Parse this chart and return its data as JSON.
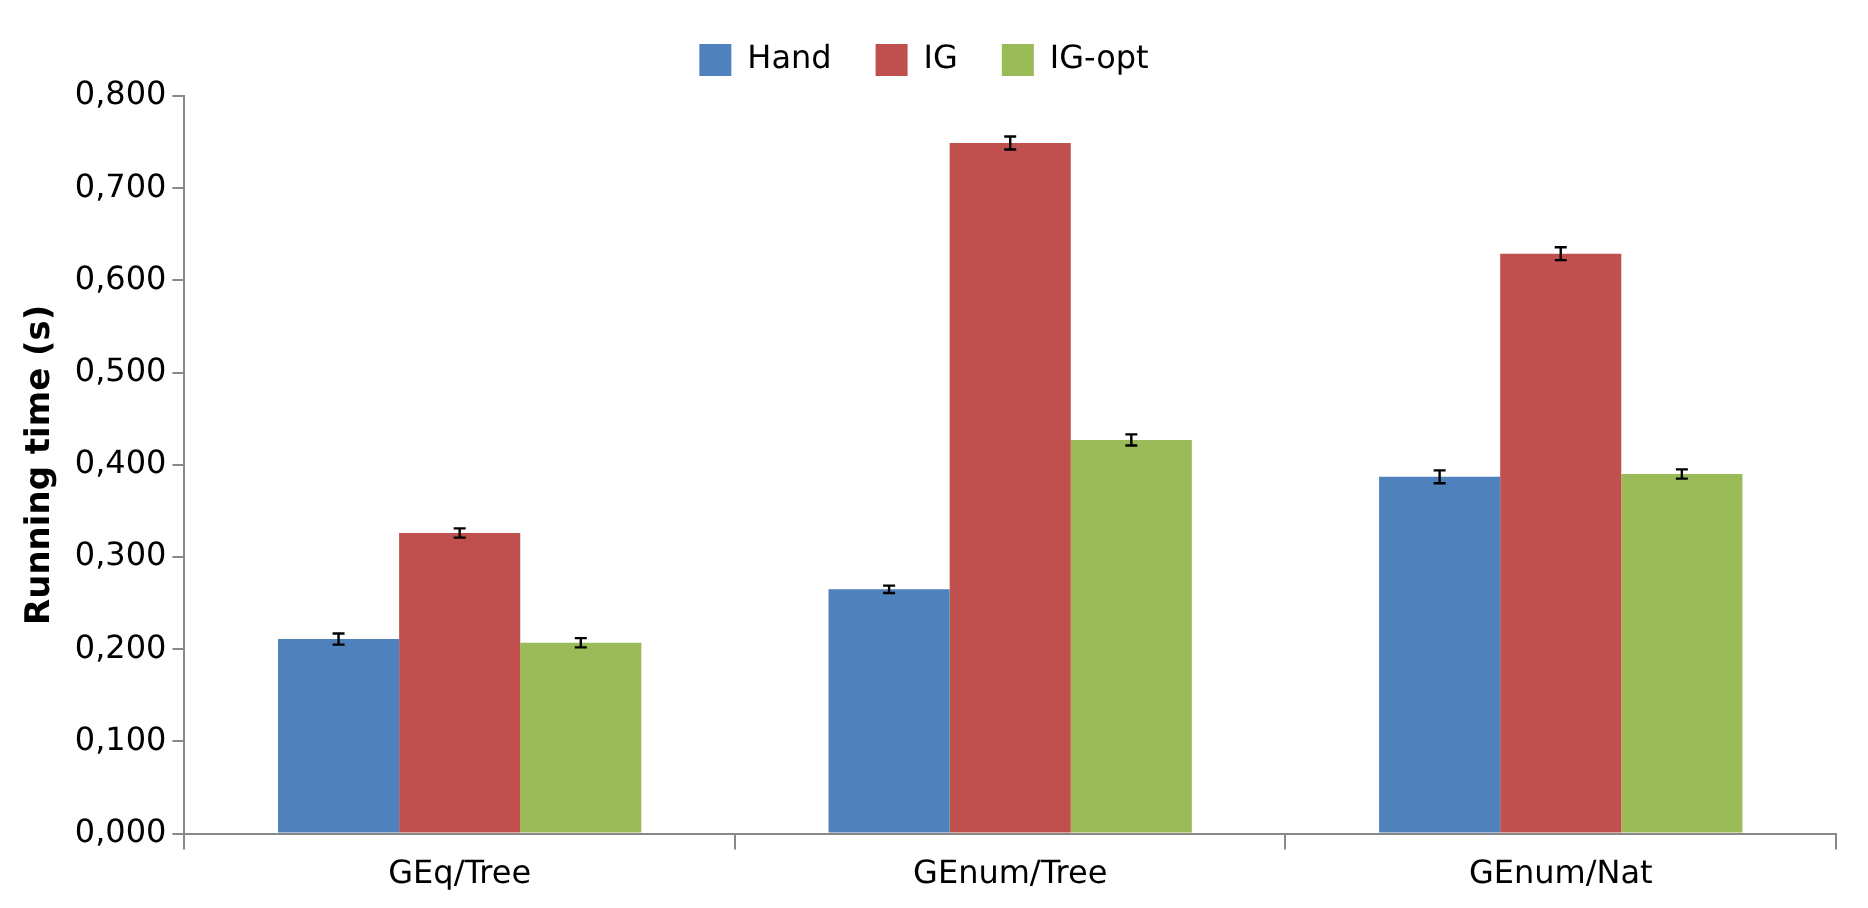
{
  "chart_data": {
    "type": "bar",
    "ylabel": "Running time (s)",
    "categories": [
      "GEq/Tree",
      "GEnum/Tree",
      "GEnum/Nat"
    ],
    "series": [
      {
        "name": "Hand",
        "color": "#4f81bd",
        "values": [
          0.211,
          0.265,
          0.387
        ],
        "errors": [
          0.006,
          0.004,
          0.007
        ]
      },
      {
        "name": "IG",
        "color": "#c0504d",
        "values": [
          0.326,
          0.749,
          0.629
        ],
        "errors": [
          0.005,
          0.007,
          0.007
        ]
      },
      {
        "name": "IG-opt",
        "color": "#9bbb59",
        "values": [
          0.207,
          0.427,
          0.39
        ],
        "errors": [
          0.005,
          0.006,
          0.005
        ]
      }
    ],
    "ylim": [
      0,
      0.8
    ],
    "yticks": [
      {
        "value": 0,
        "label": "0,000"
      },
      {
        "value": 0.1,
        "label": "0,100"
      },
      {
        "value": 0.2,
        "label": "0,200"
      },
      {
        "value": 0.3,
        "label": "0,300"
      },
      {
        "value": 0.4,
        "label": "0,400"
      },
      {
        "value": 0.5,
        "label": "0,500"
      },
      {
        "value": 0.6,
        "label": "0,600"
      },
      {
        "value": 0.7,
        "label": "0,700"
      },
      {
        "value": 0.8,
        "label": "0,800"
      }
    ],
    "grid": false,
    "legend": "top"
  }
}
